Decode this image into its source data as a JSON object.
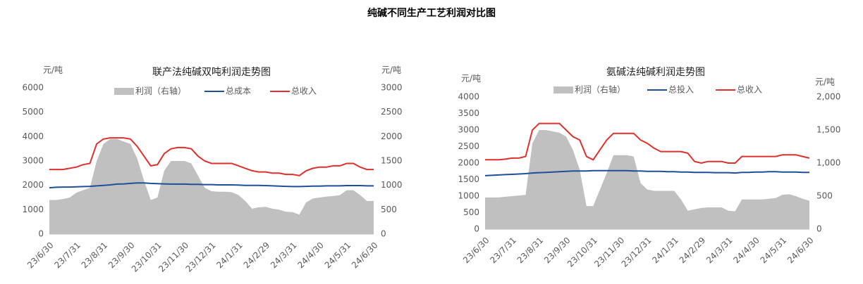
{
  "title": "纯碱不同生产工艺利润对比图",
  "chart_data": [
    {
      "type": "line",
      "title": "联产法纯碱双吨利润走势图",
      "y_unit": "元/吨",
      "y2_unit": "元/吨",
      "categories": [
        "23/6/30",
        null,
        null,
        null,
        "23/7/31",
        null,
        null,
        null,
        "23/8/31",
        null,
        null,
        null,
        "23/9/30",
        null,
        null,
        null,
        "23/10/31",
        null,
        null,
        null,
        "23/11/30",
        null,
        null,
        null,
        "23/12/31",
        null,
        null,
        null,
        "24/1/31",
        null,
        null,
        null,
        "24/2/29",
        null,
        null,
        null,
        "24/3/31",
        null,
        null,
        null,
        "24/4/30",
        null,
        null,
        null,
        "24/5/31",
        null,
        null,
        null,
        "24/6/30"
      ],
      "ylim": [
        0,
        6000
      ],
      "yticks": [
        0,
        1000,
        2000,
        3000,
        4000,
        5000,
        6000
      ],
      "y2lim": [
        0,
        3000
      ],
      "y2ticks": [
        0,
        500,
        1000,
        1500,
        2000,
        2500,
        3000
      ],
      "series": [
        {
          "name": "利润（右轴）",
          "type": "area",
          "axis": "y2",
          "color": "#c0c0c0",
          "values": [
            700,
            700,
            720,
            750,
            850,
            900,
            950,
            1500,
            1850,
            1950,
            1950,
            1900,
            1850,
            1550,
            1100,
            700,
            750,
            1300,
            1500,
            1500,
            1500,
            1450,
            1200,
            950,
            880,
            870,
            870,
            860,
            800,
            680,
            520,
            550,
            560,
            520,
            500,
            460,
            450,
            400,
            650,
            730,
            750,
            770,
            780,
            800,
            900,
            900,
            800,
            680,
            680
          ]
        },
        {
          "name": "总成本",
          "type": "line",
          "color": "#1f4e9c",
          "values": [
            1900,
            1920,
            1930,
            1930,
            1940,
            1950,
            1960,
            1980,
            2000,
            2020,
            2050,
            2060,
            2080,
            2100,
            2100,
            2080,
            2070,
            2060,
            2050,
            2050,
            2050,
            2040,
            2040,
            2030,
            2030,
            2020,
            2020,
            2020,
            2010,
            2000,
            2000,
            2000,
            1990,
            1980,
            1970,
            1960,
            1950,
            1950,
            1960,
            1970,
            1970,
            1980,
            1980,
            1980,
            1990,
            1990,
            1990,
            1980,
            1980
          ]
        },
        {
          "name": "总收入",
          "type": "line",
          "color": "#e0302c",
          "values": [
            2650,
            2650,
            2650,
            2700,
            2750,
            2850,
            2900,
            3700,
            3900,
            3950,
            3950,
            3950,
            3900,
            3600,
            3200,
            2800,
            2850,
            3300,
            3500,
            3550,
            3550,
            3500,
            3200,
            3000,
            2900,
            2900,
            2900,
            2900,
            2800,
            2700,
            2600,
            2550,
            2550,
            2500,
            2500,
            2450,
            2450,
            2400,
            2600,
            2700,
            2750,
            2750,
            2800,
            2800,
            2900,
            2900,
            2750,
            2650,
            2650
          ]
        }
      ]
    },
    {
      "type": "line",
      "title": "氨碱法纯碱利润走势图",
      "y_unit": "元/吨",
      "y2_unit": "元/吨",
      "categories": [
        "23/6/30",
        null,
        null,
        null,
        "23/7/31",
        null,
        null,
        null,
        "23/8/31",
        null,
        null,
        null,
        "23/9/30",
        null,
        null,
        null,
        "23/10/31",
        null,
        null,
        null,
        "23/11/30",
        null,
        null,
        null,
        "23/12/31",
        null,
        null,
        null,
        "24/1/31",
        null,
        null,
        null,
        "24/2/29",
        null,
        null,
        null,
        "24/3/31",
        null,
        null,
        null,
        "24/4/30",
        null,
        null,
        null,
        "24/5/31",
        null,
        null,
        null,
        "24/6/30"
      ],
      "ylim": [
        0,
        4000
      ],
      "yticks": [
        0,
        500,
        1000,
        1500,
        2000,
        2500,
        3000,
        3500,
        4000
      ],
      "y2lim": [
        0,
        2000
      ],
      "y2ticks": [
        0,
        500,
        {
          "value": 1000,
          "label": "1,000"
        },
        {
          "value": 1500,
          "label": "1,500"
        },
        {
          "value": 2000,
          "label": "2,000"
        }
      ],
      "series": [
        {
          "name": "利润（右轴）",
          "type": "area",
          "axis": "y2",
          "color": "#c0c0c0",
          "values": [
            480,
            480,
            480,
            490,
            500,
            510,
            520,
            1300,
            1500,
            1500,
            1480,
            1460,
            1400,
            1200,
            900,
            350,
            350,
            600,
            850,
            1120,
            1120,
            1120,
            1100,
            700,
            600,
            580,
            580,
            580,
            580,
            450,
            280,
            300,
            320,
            330,
            330,
            330,
            280,
            270,
            450,
            450,
            450,
            450,
            460,
            470,
            520,
            530,
            500,
            460,
            430
          ]
        },
        {
          "name": "总投入",
          "type": "line",
          "color": "#1f4e9c",
          "values": [
            1620,
            1630,
            1640,
            1650,
            1660,
            1670,
            1680,
            1700,
            1710,
            1720,
            1730,
            1740,
            1750,
            1760,
            1760,
            1760,
            1770,
            1770,
            1770,
            1770,
            1770,
            1770,
            1760,
            1760,
            1750,
            1750,
            1750,
            1740,
            1740,
            1730,
            1730,
            1720,
            1720,
            1720,
            1710,
            1710,
            1710,
            1700,
            1720,
            1720,
            1730,
            1730,
            1740,
            1740,
            1730,
            1730,
            1730,
            1720,
            1720
          ]
        },
        {
          "name": "总收入",
          "type": "line",
          "color": "#e0302c",
          "values": [
            2100,
            2100,
            2100,
            2120,
            2150,
            2150,
            2200,
            3000,
            3200,
            3200,
            3200,
            3200,
            3000,
            2800,
            2700,
            2200,
            2100,
            2400,
            2700,
            2900,
            2900,
            2900,
            2900,
            2700,
            2600,
            2450,
            2350,
            2350,
            2350,
            2350,
            2300,
            2050,
            2000,
            2050,
            2050,
            2050,
            2000,
            2000,
            2200,
            2200,
            2200,
            2200,
            2200,
            2200,
            2250,
            2250,
            2250,
            2200,
            2150
          ]
        }
      ]
    }
  ]
}
